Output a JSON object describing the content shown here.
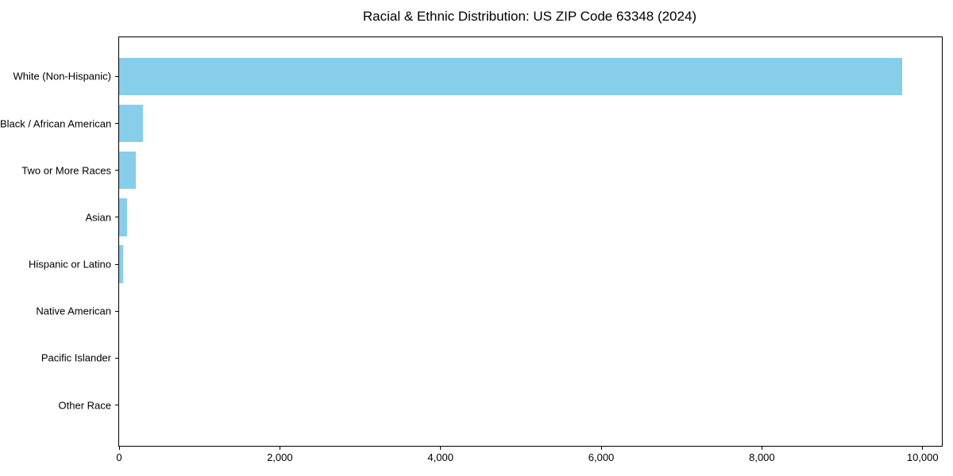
{
  "chart_data": {
    "type": "bar",
    "orientation": "horizontal",
    "title": "Racial & Ethnic Distribution: US ZIP Code 63348 (2024)",
    "categories": [
      "White (Non-Hispanic)",
      "Black / African American",
      "Two or More Races",
      "Asian",
      "Hispanic or Latino",
      "Native American",
      "Pacific Islander",
      "Other Race"
    ],
    "values": [
      9750,
      300,
      205,
      95,
      48,
      0,
      0,
      0
    ],
    "xlabel": "",
    "ylabel": "",
    "xlim": [
      0,
      10240
    ],
    "xticks": [
      0,
      2000,
      4000,
      6000,
      8000,
      10000
    ],
    "xtick_labels": [
      "0",
      "2,000",
      "4,000",
      "6,000",
      "8,000",
      "10,000"
    ],
    "bar_color": "#87CEEB",
    "axis_color": "#000000",
    "text_color": "#000000",
    "grid": false,
    "legend": null,
    "bar_height_fraction": 0.8
  }
}
